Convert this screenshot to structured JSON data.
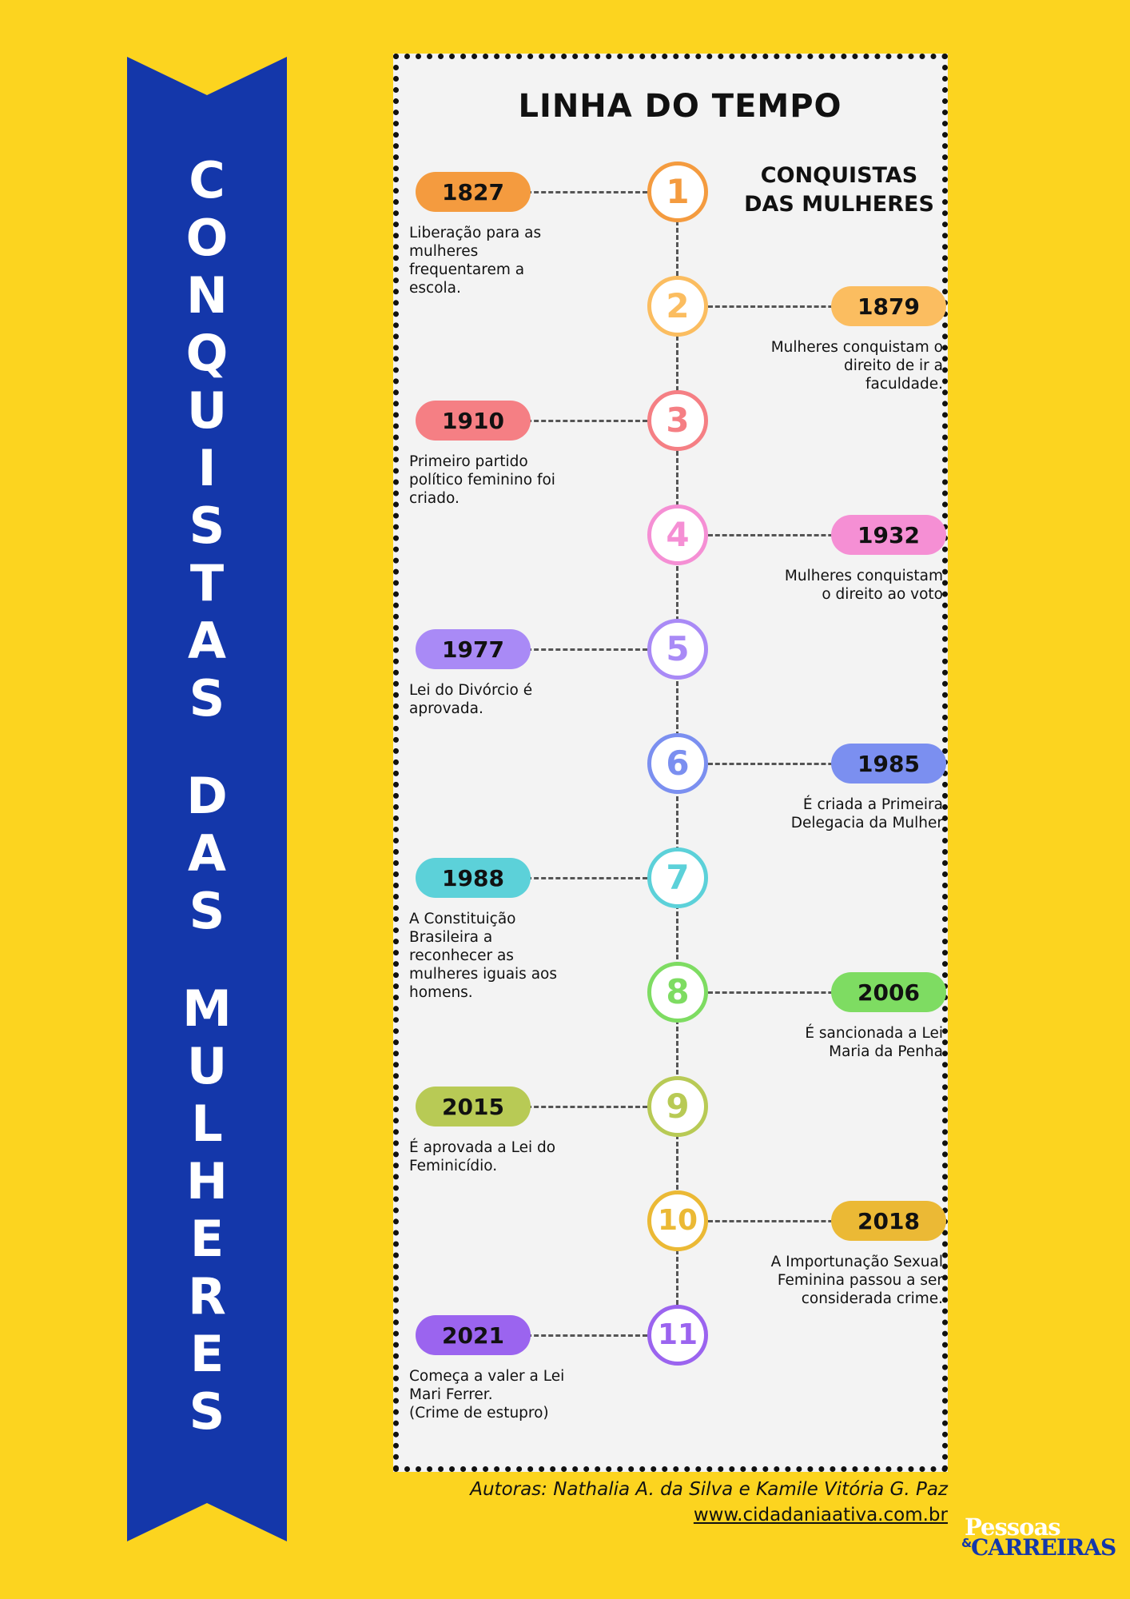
{
  "banner": {
    "letters": [
      "C",
      "O",
      "N",
      "Q",
      "U",
      "I",
      "S",
      "T",
      "A",
      "S",
      " ",
      "D",
      "A",
      "S",
      " ",
      "M",
      "U",
      "L",
      "H",
      "E",
      "R",
      "E",
      "S"
    ]
  },
  "card": {
    "title": "LINHA DO TEMPO",
    "subtitle_line1": "CONQUISTAS",
    "subtitle_line2": "DAS MULHERES"
  },
  "events": [
    {
      "n": "1",
      "year": "1827",
      "color": "#f49b3f",
      "side": "left",
      "text": "Liberação para as\nmulheres\nfrequentarem a\nescola."
    },
    {
      "n": "2",
      "year": "1879",
      "color": "#fbbd60",
      "side": "right",
      "text": "Mulheres conquistam o\ndireito de ir a\nfaculdade."
    },
    {
      "n": "3",
      "year": "1910",
      "color": "#f57f84",
      "side": "left",
      "text": "Primeiro partido\npolítico feminino foi\ncriado."
    },
    {
      "n": "4",
      "year": "1932",
      "color": "#f58fd4",
      "side": "right",
      "text": "Mulheres conquistam\no direito ao voto"
    },
    {
      "n": "5",
      "year": "1977",
      "color": "#a98af6",
      "side": "left",
      "text": "Lei do Divórcio é\naprovada."
    },
    {
      "n": "6",
      "year": "1985",
      "color": "#7b8ff0",
      "side": "right",
      "text": "É criada a Primeira\nDelegacia da Mulher"
    },
    {
      "n": "7",
      "year": "1988",
      "color": "#5cd1d9",
      "side": "left",
      "text": "A Constituição\nBrasileira a\nreconhecer as\nmulheres iguais aos\nhomens."
    },
    {
      "n": "8",
      "year": "2006",
      "color": "#7edc62",
      "side": "right",
      "text": "É  sancionada a Lei\nMaria da Penha"
    },
    {
      "n": "9",
      "year": "2015",
      "color": "#b8ca55",
      "side": "left",
      "text": "É aprovada a Lei do\nFeminicídio."
    },
    {
      "n": "10",
      "year": "2018",
      "color": "#ebb935",
      "side": "right",
      "text": "A Importunação Sexual\nFeminina passou a ser\nconsiderada crime."
    },
    {
      "n": "11",
      "year": "2021",
      "color": "#9b64ef",
      "side": "left",
      "text": "Começa a valer a Lei\nMari Ferrer.\n(Crime de estupro)"
    }
  ],
  "footer": {
    "authors": "Autoras: Nathalia A. da Silva e Kamile Vitória G. Paz",
    "website": "www.cidadaniaativa.com.br",
    "logo_line1": "Pessoas",
    "logo_amp": "&",
    "logo_line2": "CARREIRAS"
  }
}
